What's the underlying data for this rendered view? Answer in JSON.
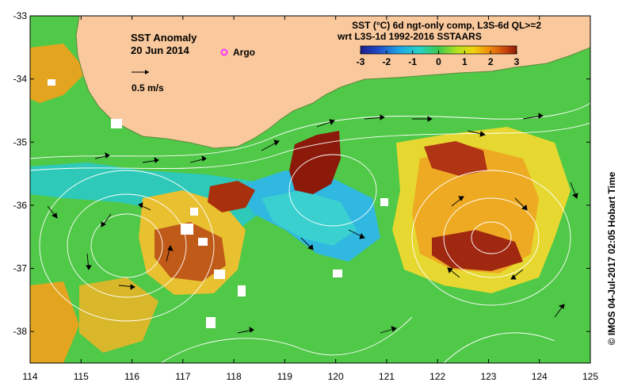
{
  "map": {
    "title": "SST Anomaly",
    "date": "20 Jun 2014",
    "argo_label": "Argo",
    "argo_marker_color": "#ff33ff",
    "vector_scale_label": "0.5 m/s",
    "product_line1": "SST (°C) 6d ngt-only comp, L3S-6d QL>=2",
    "product_line2": "wrt L3S-1d 1992-2016 SSTAARS",
    "colorbar": {
      "min": -3,
      "max": 3,
      "ticks": [
        "-3",
        "-2",
        "-1",
        "0",
        "1",
        "2",
        "3"
      ],
      "colors": [
        "#1d1d8f",
        "#1f4fc8",
        "#1fa7e6",
        "#27d3c4",
        "#3ec84d",
        "#b5e21f",
        "#f0d20f",
        "#f08a0e",
        "#c8420c",
        "#8b1a0a"
      ]
    },
    "land_color": "#f9c89c",
    "x_axis": {
      "label": "",
      "min": 114,
      "max": 125,
      "ticks": [
        "114",
        "115",
        "116",
        "117",
        "118",
        "119",
        "120",
        "121",
        "122",
        "123",
        "124",
        "125"
      ]
    },
    "y_axis": {
      "label": "",
      "min": -38.5,
      "max": -33,
      "ticks": [
        "-33",
        "-34",
        "-35",
        "-36",
        "-37",
        "-38"
      ]
    },
    "credit": "© IMOS 04-Jul-2017 02:05 Hobart Time"
  }
}
